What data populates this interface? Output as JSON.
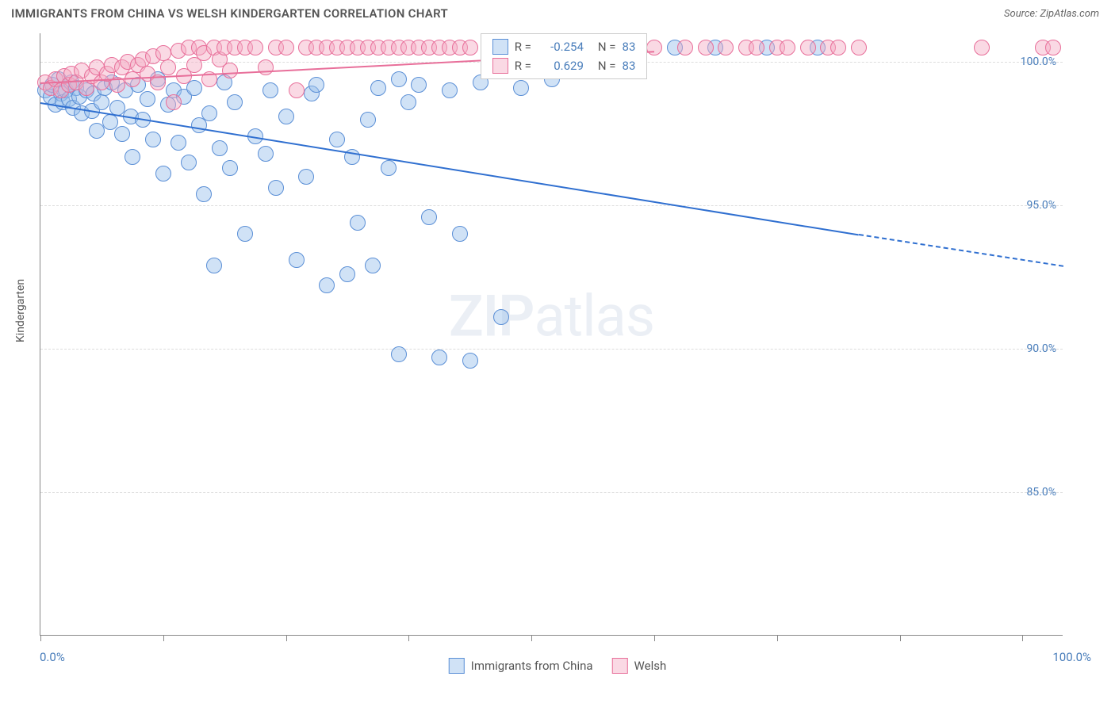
{
  "header": {
    "title": "IMMIGRANTS FROM CHINA VS WELSH KINDERGARTEN CORRELATION CHART",
    "source_label": "Source:",
    "source_name": "ZipAtlas.com"
  },
  "chart": {
    "type": "scatter",
    "ylabel": "Kindergarten",
    "xlim": [
      0,
      100
    ],
    "ylim": [
      80,
      101
    ],
    "x_range_labels": [
      "0.0%",
      "100.0%"
    ],
    "yticks": [
      {
        "v": 100,
        "label": "100.0%"
      },
      {
        "v": 95,
        "label": "95.0%"
      },
      {
        "v": 90,
        "label": "90.0%"
      },
      {
        "v": 85,
        "label": "85.0%"
      }
    ],
    "xtick_positions": [
      0,
      12,
      24,
      36,
      48,
      60,
      72,
      84,
      96
    ],
    "background_color": "#ffffff",
    "grid_color": "#dddddd",
    "axis_color": "#888888",
    "marker_radius": 10,
    "series": [
      {
        "name": "Immigrants from China",
        "fill": "rgba(150,190,235,0.45)",
        "stroke": "#5b8fd6",
        "trend_color": "#2f6fd0",
        "R": "-0.254",
        "N": "83",
        "trend": {
          "x1": 0,
          "y1": 98.6,
          "x2": 80,
          "y2": 94.0,
          "dash_x2": 100,
          "dash_y2": 92.9
        },
        "points": [
          [
            0.5,
            99.0
          ],
          [
            1.0,
            98.8
          ],
          [
            1.2,
            99.2
          ],
          [
            1.5,
            98.5
          ],
          [
            1.8,
            99.4
          ],
          [
            2.0,
            98.9
          ],
          [
            2.2,
            98.6
          ],
          [
            2.5,
            99.0
          ],
          [
            2.8,
            98.7
          ],
          [
            3.0,
            99.3
          ],
          [
            3.2,
            98.4
          ],
          [
            3.5,
            99.1
          ],
          [
            3.8,
            98.8
          ],
          [
            4.0,
            98.2
          ],
          [
            4.5,
            99.0
          ],
          [
            5.0,
            98.3
          ],
          [
            5.2,
            98.9
          ],
          [
            5.5,
            97.6
          ],
          [
            6.0,
            98.6
          ],
          [
            6.3,
            99.1
          ],
          [
            6.8,
            97.9
          ],
          [
            7.0,
            99.3
          ],
          [
            7.5,
            98.4
          ],
          [
            8.0,
            97.5
          ],
          [
            8.3,
            99.0
          ],
          [
            8.8,
            98.1
          ],
          [
            9.0,
            96.7
          ],
          [
            9.5,
            99.2
          ],
          [
            10.0,
            98.0
          ],
          [
            10.5,
            98.7
          ],
          [
            11.0,
            97.3
          ],
          [
            11.5,
            99.4
          ],
          [
            12.0,
            96.1
          ],
          [
            12.5,
            98.5
          ],
          [
            13.0,
            99.0
          ],
          [
            13.5,
            97.2
          ],
          [
            14.0,
            98.8
          ],
          [
            14.5,
            96.5
          ],
          [
            15.0,
            99.1
          ],
          [
            15.5,
            97.8
          ],
          [
            16.0,
            95.4
          ],
          [
            16.5,
            98.2
          ],
          [
            17.0,
            92.9
          ],
          [
            17.5,
            97.0
          ],
          [
            18.0,
            99.3
          ],
          [
            18.5,
            96.3
          ],
          [
            19.0,
            98.6
          ],
          [
            20.0,
            94.0
          ],
          [
            21.0,
            97.4
          ],
          [
            22.0,
            96.8
          ],
          [
            22.5,
            99.0
          ],
          [
            23.0,
            95.6
          ],
          [
            24.0,
            98.1
          ],
          [
            25.0,
            93.1
          ],
          [
            26.0,
            96.0
          ],
          [
            26.5,
            98.9
          ],
          [
            27.0,
            99.2
          ],
          [
            28.0,
            92.2
          ],
          [
            29.0,
            97.3
          ],
          [
            30.0,
            92.6
          ],
          [
            30.5,
            96.7
          ],
          [
            31.0,
            94.4
          ],
          [
            32.0,
            98.0
          ],
          [
            32.5,
            92.9
          ],
          [
            33.0,
            99.1
          ],
          [
            34.0,
            96.3
          ],
          [
            35.0,
            99.4
          ],
          [
            35.0,
            89.8
          ],
          [
            36.0,
            98.6
          ],
          [
            37.0,
            99.2
          ],
          [
            38.0,
            94.6
          ],
          [
            39.0,
            89.7
          ],
          [
            40.0,
            99.0
          ],
          [
            41.0,
            94.0
          ],
          [
            42.0,
            89.6
          ],
          [
            43.0,
            99.3
          ],
          [
            45.0,
            91.1
          ],
          [
            47.0,
            99.1
          ],
          [
            50.0,
            99.4
          ],
          [
            62.0,
            100.5
          ],
          [
            66.0,
            100.5
          ],
          [
            71.0,
            100.5
          ],
          [
            76.0,
            100.5
          ]
        ]
      },
      {
        "name": "Welsh",
        "fill": "rgba(245,170,195,0.45)",
        "stroke": "#e86f9a",
        "trend_color": "#e86f9a",
        "R": "0.629",
        "N": "83",
        "trend": {
          "x1": 0,
          "y1": 99.3,
          "x2": 60,
          "y2": 100.4
        },
        "points": [
          [
            0.5,
            99.3
          ],
          [
            1.0,
            99.1
          ],
          [
            1.5,
            99.4
          ],
          [
            2.0,
            99.0
          ],
          [
            2.3,
            99.5
          ],
          [
            2.8,
            99.2
          ],
          [
            3.0,
            99.6
          ],
          [
            3.5,
            99.3
          ],
          [
            4.0,
            99.7
          ],
          [
            4.5,
            99.1
          ],
          [
            5.0,
            99.5
          ],
          [
            5.5,
            99.8
          ],
          [
            6.0,
            99.3
          ],
          [
            6.5,
            99.6
          ],
          [
            7.0,
            99.9
          ],
          [
            7.5,
            99.2
          ],
          [
            8.0,
            99.8
          ],
          [
            8.5,
            100.0
          ],
          [
            9.0,
            99.4
          ],
          [
            9.5,
            99.9
          ],
          [
            10.0,
            100.1
          ],
          [
            10.5,
            99.6
          ],
          [
            11.0,
            100.2
          ],
          [
            11.5,
            99.3
          ],
          [
            12.0,
            100.3
          ],
          [
            12.5,
            99.8
          ],
          [
            13.0,
            98.6
          ],
          [
            13.5,
            100.4
          ],
          [
            14.0,
            99.5
          ],
          [
            14.5,
            100.5
          ],
          [
            15.0,
            99.9
          ],
          [
            15.5,
            100.5
          ],
          [
            16.0,
            100.3
          ],
          [
            16.5,
            99.4
          ],
          [
            17.0,
            100.5
          ],
          [
            17.5,
            100.1
          ],
          [
            18.0,
            100.5
          ],
          [
            18.5,
            99.7
          ],
          [
            19.0,
            100.5
          ],
          [
            20.0,
            100.5
          ],
          [
            21.0,
            100.5
          ],
          [
            22.0,
            99.8
          ],
          [
            23.0,
            100.5
          ],
          [
            24.0,
            100.5
          ],
          [
            25.0,
            99.0
          ],
          [
            26.0,
            100.5
          ],
          [
            27.0,
            100.5
          ],
          [
            28.0,
            100.5
          ],
          [
            29.0,
            100.5
          ],
          [
            30.0,
            100.5
          ],
          [
            31.0,
            100.5
          ],
          [
            32.0,
            100.5
          ],
          [
            33.0,
            100.5
          ],
          [
            34.0,
            100.5
          ],
          [
            35.0,
            100.5
          ],
          [
            36.0,
            100.5
          ],
          [
            37.0,
            100.5
          ],
          [
            38.0,
            100.5
          ],
          [
            39.0,
            100.5
          ],
          [
            40.0,
            100.5
          ],
          [
            41.0,
            100.5
          ],
          [
            42.0,
            100.5
          ],
          [
            47.0,
            100.5
          ],
          [
            50.0,
            100.5
          ],
          [
            53.0,
            100.5
          ],
          [
            56.0,
            100.5
          ],
          [
            57.0,
            100.5
          ],
          [
            58.0,
            100.5
          ],
          [
            60.0,
            100.5
          ],
          [
            63.0,
            100.5
          ],
          [
            65.0,
            100.5
          ],
          [
            67.0,
            100.5
          ],
          [
            69.0,
            100.5
          ],
          [
            70.0,
            100.5
          ],
          [
            72.0,
            100.5
          ],
          [
            73.0,
            100.5
          ],
          [
            75.0,
            100.5
          ],
          [
            77.0,
            100.5
          ],
          [
            78.0,
            100.5
          ],
          [
            80.0,
            100.5
          ],
          [
            92.0,
            100.5
          ],
          [
            98.0,
            100.5
          ],
          [
            99.0,
            100.5
          ]
        ]
      }
    ],
    "legend": {
      "R_label": "R =",
      "N_label": "N ="
    },
    "watermark": {
      "bold": "ZIP",
      "rest": "atlas"
    }
  }
}
